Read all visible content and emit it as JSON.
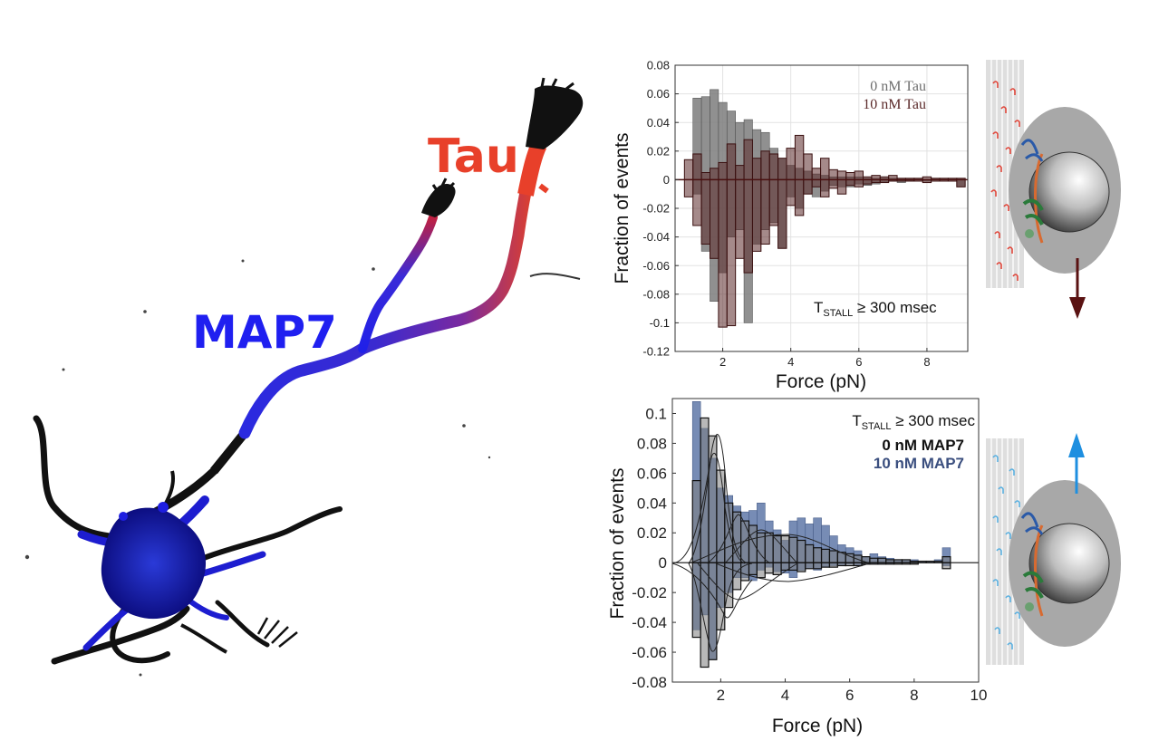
{
  "labels": {
    "tau": "Tau",
    "map7": "MAP7"
  },
  "colors": {
    "tau": "#e8402a",
    "map7": "#1f1ff0",
    "black": "#111111",
    "gray_bar": "#7d7d7d",
    "tau_bar": "#5b2a2a",
    "map7_bar": "#5f78a8",
    "map7_text": "#3b4f7f",
    "arrow_down": "#5a1212",
    "arrow_up": "#1e8fe0"
  },
  "chart_data": [
    {
      "type": "bar",
      "id": "tau-chart",
      "xlabel": "Force (pN)",
      "ylabel": "Fraction of events",
      "xlim": [
        0.6,
        9.2
      ],
      "ylim": [
        -0.12,
        0.08
      ],
      "xticks": [
        2,
        4,
        6,
        8
      ],
      "yticks": [
        -0.12,
        -0.1,
        -0.08,
        -0.06,
        -0.04,
        -0.02,
        0,
        0.02,
        0.04,
        0.06,
        0.08
      ],
      "ytick_labels": [
        "-0.12",
        "-0.1",
        "-0.08",
        "-0.06",
        "-0.04",
        "-0.02",
        "0",
        "0.02",
        "0.04",
        "0.06",
        "0.08"
      ],
      "xtick_labels": [
        "2",
        "4",
        "6",
        "8"
      ],
      "grid": true,
      "bin_width": 0.25,
      "x": [
        1.0,
        1.25,
        1.5,
        1.75,
        2.0,
        2.25,
        2.5,
        2.75,
        3.0,
        3.25,
        3.5,
        3.75,
        4.0,
        4.25,
        4.5,
        4.75,
        5.0,
        5.25,
        5.5,
        5.75,
        6.0,
        6.25,
        6.5,
        6.75,
        7.0,
        7.25,
        7.5,
        7.75,
        8.0,
        8.25,
        8.5,
        8.75,
        9.0
      ],
      "legend": [
        "0 nM Tau",
        "10 nM Tau"
      ],
      "annotation": {
        "prefix": "T",
        "sub": "STALL",
        "text": " ≥ 300 msec"
      },
      "series": [
        {
          "name": "0 nM Tau",
          "color": "#7d7d7d",
          "pos": [
            0,
            0.057,
            0.058,
            0.063,
            0.054,
            0.048,
            0.04,
            0.042,
            0.035,
            0.033,
            0.022,
            0.015,
            0.01,
            0.008,
            0.006,
            0.004,
            0.003,
            0.002,
            0.002,
            0.002,
            0.002,
            0.001,
            0.001,
            0.001,
            0.001,
            0,
            0,
            0,
            0,
            0,
            0,
            0,
            0
          ],
          "neg": [
            0,
            -0.01,
            -0.05,
            -0.085,
            -0.065,
            -0.04,
            -0.035,
            -0.1,
            -0.045,
            -0.035,
            -0.03,
            -0.048,
            -0.012,
            -0.02,
            -0.01,
            -0.012,
            -0.008,
            -0.004,
            -0.005,
            -0.005,
            -0.003,
            -0.004,
            -0.003,
            -0.002,
            -0.001,
            -0.002,
            -0.001,
            0,
            -0.001,
            0,
            0,
            0,
            -0.005
          ]
        },
        {
          "name": "10 nM Tau",
          "color": "#5b2a2a",
          "pos": [
            0.014,
            0.018,
            0.005,
            0.008,
            0.012,
            0.025,
            0.01,
            0.028,
            0.015,
            0.02,
            0.018,
            0.015,
            0.022,
            0.031,
            0.018,
            0.008,
            0.015,
            0.007,
            0.006,
            0.005,
            0.006,
            0.002,
            0.003,
            0.002,
            0.003,
            0.001,
            0.001,
            0.001,
            0.002,
            0.001,
            0.001,
            0.001,
            0.001
          ],
          "neg": [
            -0.012,
            -0.032,
            -0.045,
            -0.055,
            -0.103,
            -0.102,
            -0.055,
            -0.065,
            -0.05,
            -0.045,
            -0.032,
            -0.048,
            -0.018,
            -0.025,
            -0.01,
            -0.005,
            -0.012,
            -0.006,
            -0.01,
            -0.004,
            -0.005,
            -0.003,
            -0.002,
            -0.002,
            -0.001,
            -0.001,
            -0.001,
            -0.001,
            -0.002,
            -0.001,
            -0.001,
            -0.001,
            -0.005
          ]
        }
      ]
    },
    {
      "type": "bar",
      "id": "map7-chart",
      "xlabel": "Force (pN)",
      "ylabel": "Fraction of events",
      "xlim": [
        0.5,
        10
      ],
      "ylim": [
        -0.08,
        0.11
      ],
      "xticks": [
        2,
        4,
        6,
        8,
        10
      ],
      "yticks": [
        -0.08,
        -0.06,
        -0.04,
        -0.02,
        0,
        0.02,
        0.04,
        0.06,
        0.08,
        0.1
      ],
      "ytick_labels": [
        "-0.08",
        "-0.06",
        "-0.04",
        "-0.02",
        "0",
        "0.02",
        "0.04",
        "0.06",
        "0.08",
        "0.1"
      ],
      "xtick_labels": [
        "2",
        "4",
        "6",
        "8",
        "10"
      ],
      "grid": false,
      "bin_width": 0.25,
      "x": [
        1.0,
        1.25,
        1.5,
        1.75,
        2.0,
        2.25,
        2.5,
        2.75,
        3.0,
        3.25,
        3.5,
        3.75,
        4.0,
        4.25,
        4.5,
        4.75,
        5.0,
        5.25,
        5.5,
        5.75,
        6.0,
        6.25,
        6.5,
        6.75,
        7.0,
        7.25,
        7.5,
        7.75,
        8.0,
        8.25,
        8.5,
        8.75,
        9.0
      ],
      "legend": [
        "0 nM MAP7",
        "10 nM MAP7"
      ],
      "annotation": {
        "prefix": "T",
        "sub": "STALL",
        "text": " ≥ 300 msec"
      },
      "series": [
        {
          "name": "10 nM MAP7",
          "color": "#5f78a8",
          "pos": [
            0,
            0.108,
            0.09,
            0.07,
            0.05,
            0.045,
            0.038,
            0.034,
            0.035,
            0.04,
            0.028,
            0.022,
            0.015,
            0.028,
            0.03,
            0.026,
            0.03,
            0.025,
            0.018,
            0.012,
            0.01,
            0.008,
            0.004,
            0.006,
            0.004,
            0.003,
            0.002,
            0.002,
            0.002,
            0.001,
            0.001,
            0.002,
            0.01
          ],
          "neg": [
            0,
            -0.045,
            -0.035,
            -0.065,
            -0.03,
            -0.02,
            -0.01,
            -0.01,
            -0.012,
            -0.005,
            -0.003,
            -0.006,
            -0.007,
            -0.01,
            -0.005,
            -0.004,
            -0.005,
            -0.003,
            -0.002,
            -0.002,
            -0.001,
            -0.002,
            -0.001,
            -0.001,
            -0.001,
            -0.001,
            0,
            0,
            0,
            0,
            0,
            0,
            -0.002
          ]
        },
        {
          "name": "0 nM MAP7",
          "color": "#8a8a8a",
          "pos": [
            0,
            0.055,
            0.097,
            0.085,
            0.062,
            0.04,
            0.034,
            0.028,
            0.025,
            0.02,
            0.02,
            0.018,
            0.018,
            0.017,
            0.015,
            0.012,
            0.01,
            0.009,
            0.008,
            0.007,
            0.006,
            0.005,
            0.004,
            0.003,
            0.003,
            0.002,
            0.002,
            0.002,
            0.001,
            0.001,
            0.001,
            0.001,
            0.004
          ],
          "neg": [
            0,
            -0.05,
            -0.07,
            -0.065,
            -0.045,
            -0.03,
            -0.018,
            -0.012,
            -0.008,
            -0.01,
            -0.007,
            -0.008,
            -0.005,
            -0.005,
            -0.006,
            -0.004,
            -0.004,
            -0.003,
            -0.003,
            -0.002,
            -0.002,
            -0.002,
            -0.001,
            -0.001,
            -0.001,
            -0.001,
            -0.001,
            -0.001,
            -0.001,
            0,
            0,
            0,
            -0.004
          ]
        }
      ]
    }
  ]
}
